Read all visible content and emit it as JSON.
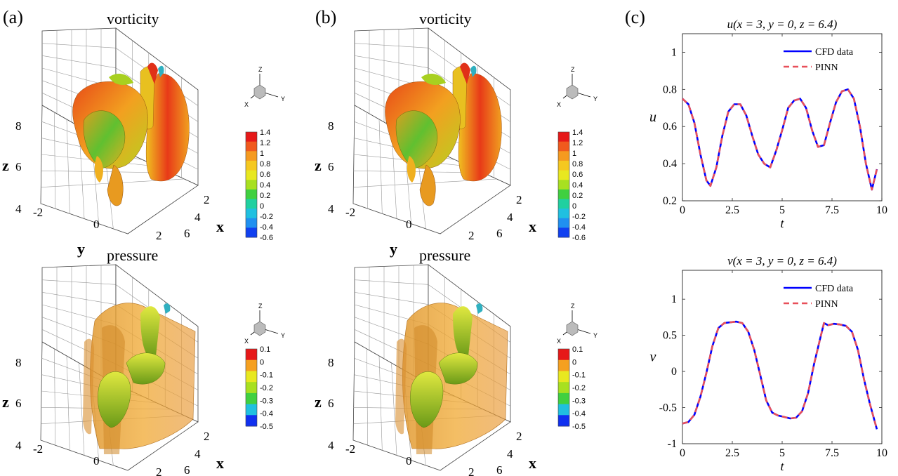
{
  "panels": {
    "a": {
      "label": "(a)"
    },
    "b": {
      "label": "(b)"
    },
    "c": {
      "label": "(c)"
    }
  },
  "cube": {
    "vorticity_title": "vorticity",
    "pressure_title": "pressure",
    "z_axis_label": "z",
    "y_axis_label": "y",
    "x_axis_label": "x",
    "z_ticks": [
      "8",
      "6",
      "4"
    ],
    "y_ticks": [
      "-2",
      "0",
      "2"
    ],
    "x_ticks": [
      "2",
      "4",
      "6"
    ],
    "triad": {
      "z": "Z",
      "x": "X",
      "y": "Y"
    }
  },
  "colorbars": {
    "vorticity": {
      "ticks": [
        "1.4",
        "1.2",
        "1",
        "0.8",
        "0.6",
        "0.4",
        "0.2",
        "0",
        "-0.2",
        "-0.4",
        "-0.6"
      ],
      "colors": [
        "#e61919",
        "#f05a1e",
        "#f59a20",
        "#f5c820",
        "#e8e820",
        "#a8e020",
        "#40d040",
        "#20d0a0",
        "#20c0e0",
        "#2090f0",
        "#1040f0"
      ]
    },
    "pressure": {
      "ticks": [
        "0.1",
        "0",
        "-0.1",
        "-0.2",
        "-0.3",
        "-0.4",
        "-0.5"
      ],
      "colors": [
        "#e61919",
        "#f5a020",
        "#e8e820",
        "#a8e020",
        "#40d040",
        "#20c0e0",
        "#1030f0"
      ]
    }
  },
  "chart_data": [
    {
      "type": "line",
      "title": "u(x = 3, y = 0, z = 6.4)",
      "xlabel": "t",
      "ylabel": "u",
      "xlim": [
        0,
        10
      ],
      "ylim": [
        0.2,
        1.1
      ],
      "xticks": [
        "0",
        "2.5",
        "5",
        "7.5",
        "10"
      ],
      "yticks": [
        "0.2",
        "0.4",
        "0.6",
        "0.8",
        "1"
      ],
      "grid": false,
      "legend": "top-right",
      "x": [
        0,
        0.3,
        0.6,
        0.9,
        1.2,
        1.4,
        1.7,
        2.0,
        2.3,
        2.6,
        2.9,
        3.2,
        3.5,
        3.8,
        4.1,
        4.4,
        4.7,
        5.0,
        5.3,
        5.6,
        5.9,
        6.2,
        6.5,
        6.8,
        7.1,
        7.4,
        7.7,
        8.0,
        8.3,
        8.6,
        8.9,
        9.2,
        9.5,
        9.75
      ],
      "series": [
        {
          "name": "CFD data",
          "color": "#0000ff",
          "style": "solid",
          "values": [
            0.75,
            0.72,
            0.62,
            0.45,
            0.31,
            0.28,
            0.38,
            0.55,
            0.68,
            0.72,
            0.72,
            0.66,
            0.55,
            0.45,
            0.4,
            0.38,
            0.47,
            0.58,
            0.7,
            0.74,
            0.75,
            0.7,
            0.58,
            0.49,
            0.5,
            0.62,
            0.73,
            0.79,
            0.8,
            0.75,
            0.6,
            0.4,
            0.26,
            0.37
          ]
        },
        {
          "name": "PINN",
          "color": "#e8505a",
          "style": "dashed",
          "values": [
            0.75,
            0.72,
            0.62,
            0.45,
            0.31,
            0.28,
            0.38,
            0.55,
            0.68,
            0.72,
            0.72,
            0.66,
            0.55,
            0.45,
            0.4,
            0.38,
            0.47,
            0.58,
            0.7,
            0.74,
            0.75,
            0.7,
            0.58,
            0.49,
            0.5,
            0.62,
            0.73,
            0.79,
            0.8,
            0.75,
            0.6,
            0.4,
            0.26,
            0.37
          ]
        }
      ]
    },
    {
      "type": "line",
      "title": "v(x = 3, y = 0, z = 6.4)",
      "xlabel": "t",
      "ylabel": "v",
      "xlim": [
        0,
        10
      ],
      "ylim": [
        -1,
        1.4
      ],
      "xticks": [
        "0",
        "2.5",
        "5",
        "7.5",
        "10"
      ],
      "yticks": [
        "-1",
        "-0.5",
        "0",
        "0.5",
        "1"
      ],
      "grid": false,
      "legend": "top-right",
      "x": [
        0,
        0.3,
        0.6,
        0.9,
        1.2,
        1.5,
        1.8,
        2.1,
        2.4,
        2.7,
        3.0,
        3.3,
        3.6,
        3.9,
        4.2,
        4.5,
        4.8,
        5.1,
        5.4,
        5.7,
        6.0,
        6.3,
        6.6,
        6.9,
        7.1,
        7.3,
        7.6,
        7.9,
        8.2,
        8.5,
        8.8,
        9.1,
        9.4,
        9.75
      ],
      "series": [
        {
          "name": "CFD data",
          "color": "#0000ff",
          "style": "solid",
          "values": [
            -0.72,
            -0.7,
            -0.6,
            -0.35,
            -0.02,
            0.35,
            0.6,
            0.67,
            0.68,
            0.69,
            0.67,
            0.55,
            0.3,
            -0.05,
            -0.4,
            -0.57,
            -0.61,
            -0.63,
            -0.65,
            -0.64,
            -0.55,
            -0.3,
            0.1,
            0.45,
            0.67,
            0.64,
            0.66,
            0.65,
            0.63,
            0.55,
            0.3,
            -0.1,
            -0.45,
            -0.8
          ]
        },
        {
          "name": "PINN",
          "color": "#e8505a",
          "style": "dashed",
          "values": [
            -0.72,
            -0.7,
            -0.6,
            -0.35,
            -0.02,
            0.35,
            0.6,
            0.67,
            0.68,
            0.69,
            0.67,
            0.55,
            0.3,
            -0.05,
            -0.4,
            -0.57,
            -0.61,
            -0.63,
            -0.65,
            -0.64,
            -0.55,
            -0.3,
            0.1,
            0.45,
            0.67,
            0.64,
            0.66,
            0.65,
            0.63,
            0.55,
            0.3,
            -0.1,
            -0.45,
            -0.8
          ]
        }
      ]
    }
  ]
}
